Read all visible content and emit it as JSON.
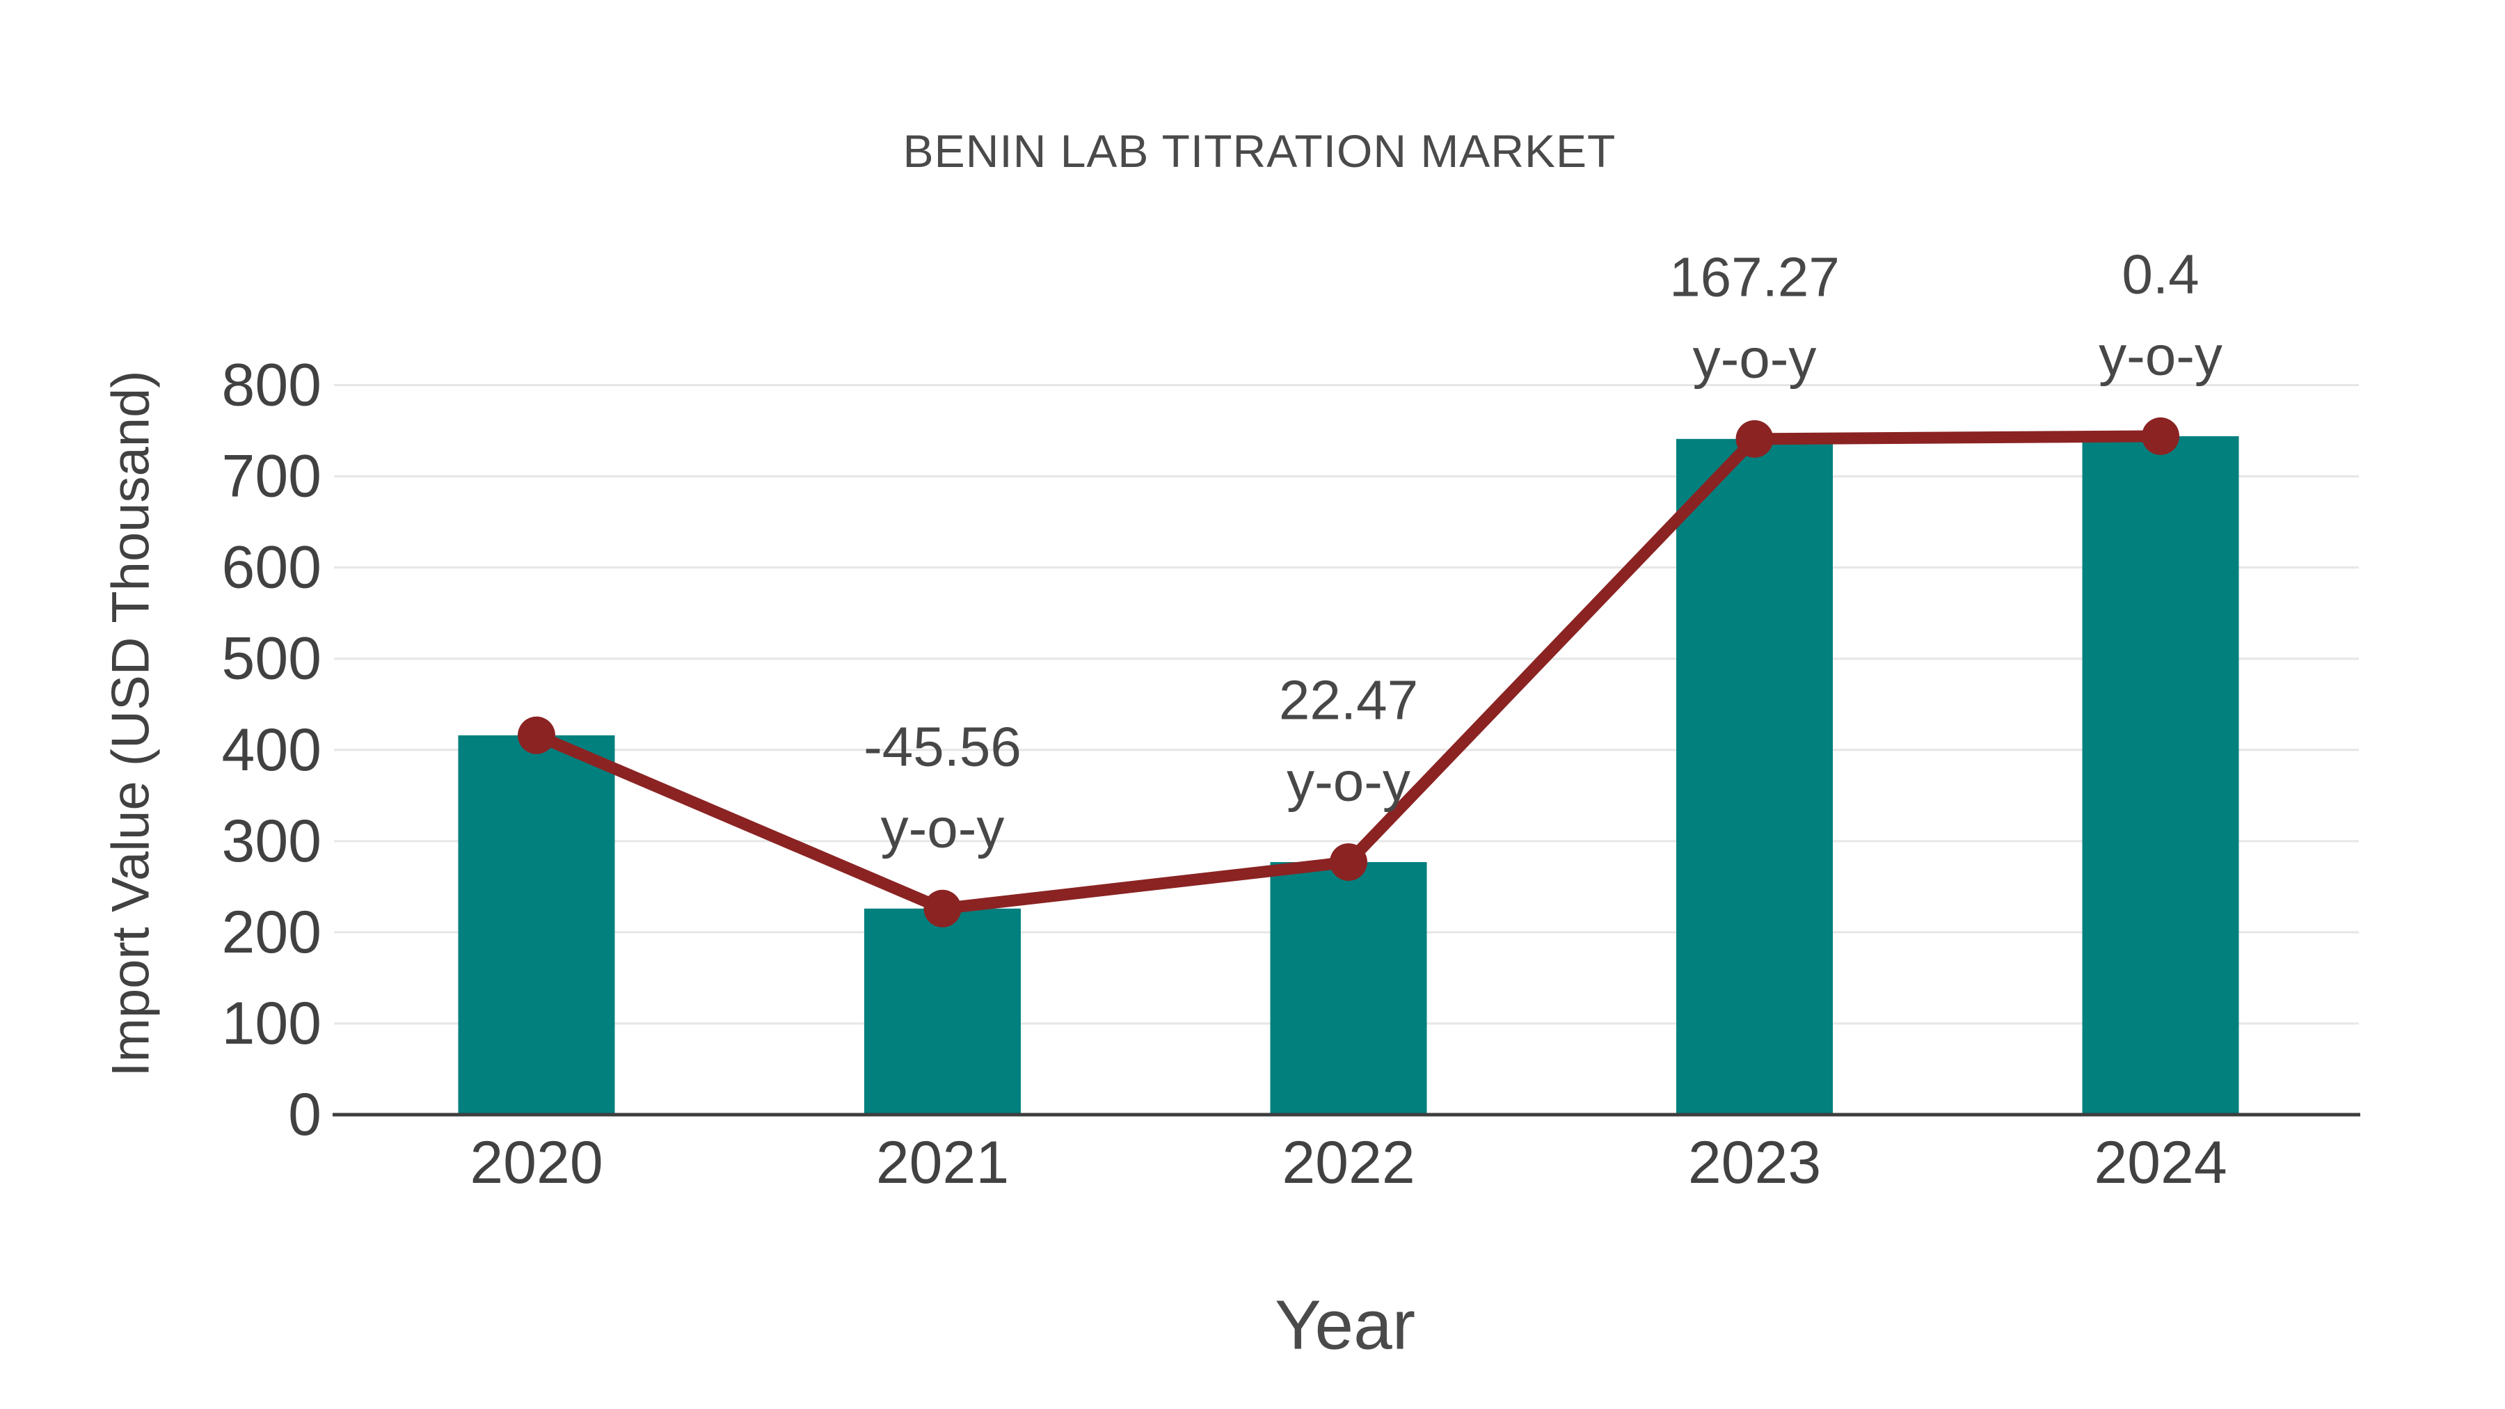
{
  "chart_data": {
    "type": "bar",
    "title": "BENIN LAB TITRATION MARKET",
    "xlabel": "Year",
    "ylabel": "Import Value (USD Thousand)",
    "categories": [
      "2020",
      "2021",
      "2022",
      "2023",
      "2024"
    ],
    "series": [
      {
        "name": "import-value-bars",
        "type": "bar",
        "values": [
          416,
          226,
          277,
          741,
          744
        ]
      },
      {
        "name": "import-value-trend-line",
        "type": "line",
        "values": [
          416,
          226,
          277,
          741,
          744
        ]
      }
    ],
    "annotations": [
      {
        "category": "2021",
        "value_text": "-45.56",
        "label_text": "y-o-y"
      },
      {
        "category": "2022",
        "value_text": "22.47",
        "label_text": "y-o-y"
      },
      {
        "category": "2023",
        "value_text": "167.27",
        "label_text": "y-o-y"
      },
      {
        "category": "2024",
        "value_text": "0.4",
        "label_text": "y-o-y"
      }
    ],
    "yticks": [
      0,
      100,
      200,
      300,
      400,
      500,
      600,
      700,
      800
    ],
    "ylim": [
      0,
      800
    ],
    "grid": true,
    "legend": false,
    "colors": {
      "bar": "#02807e",
      "line": "#8b2323",
      "marker": "#8b2323",
      "grid": "#e6e6e6",
      "axis": "#3d3d3d",
      "tick_text": "#414141",
      "annotation_text": "#474747"
    }
  }
}
